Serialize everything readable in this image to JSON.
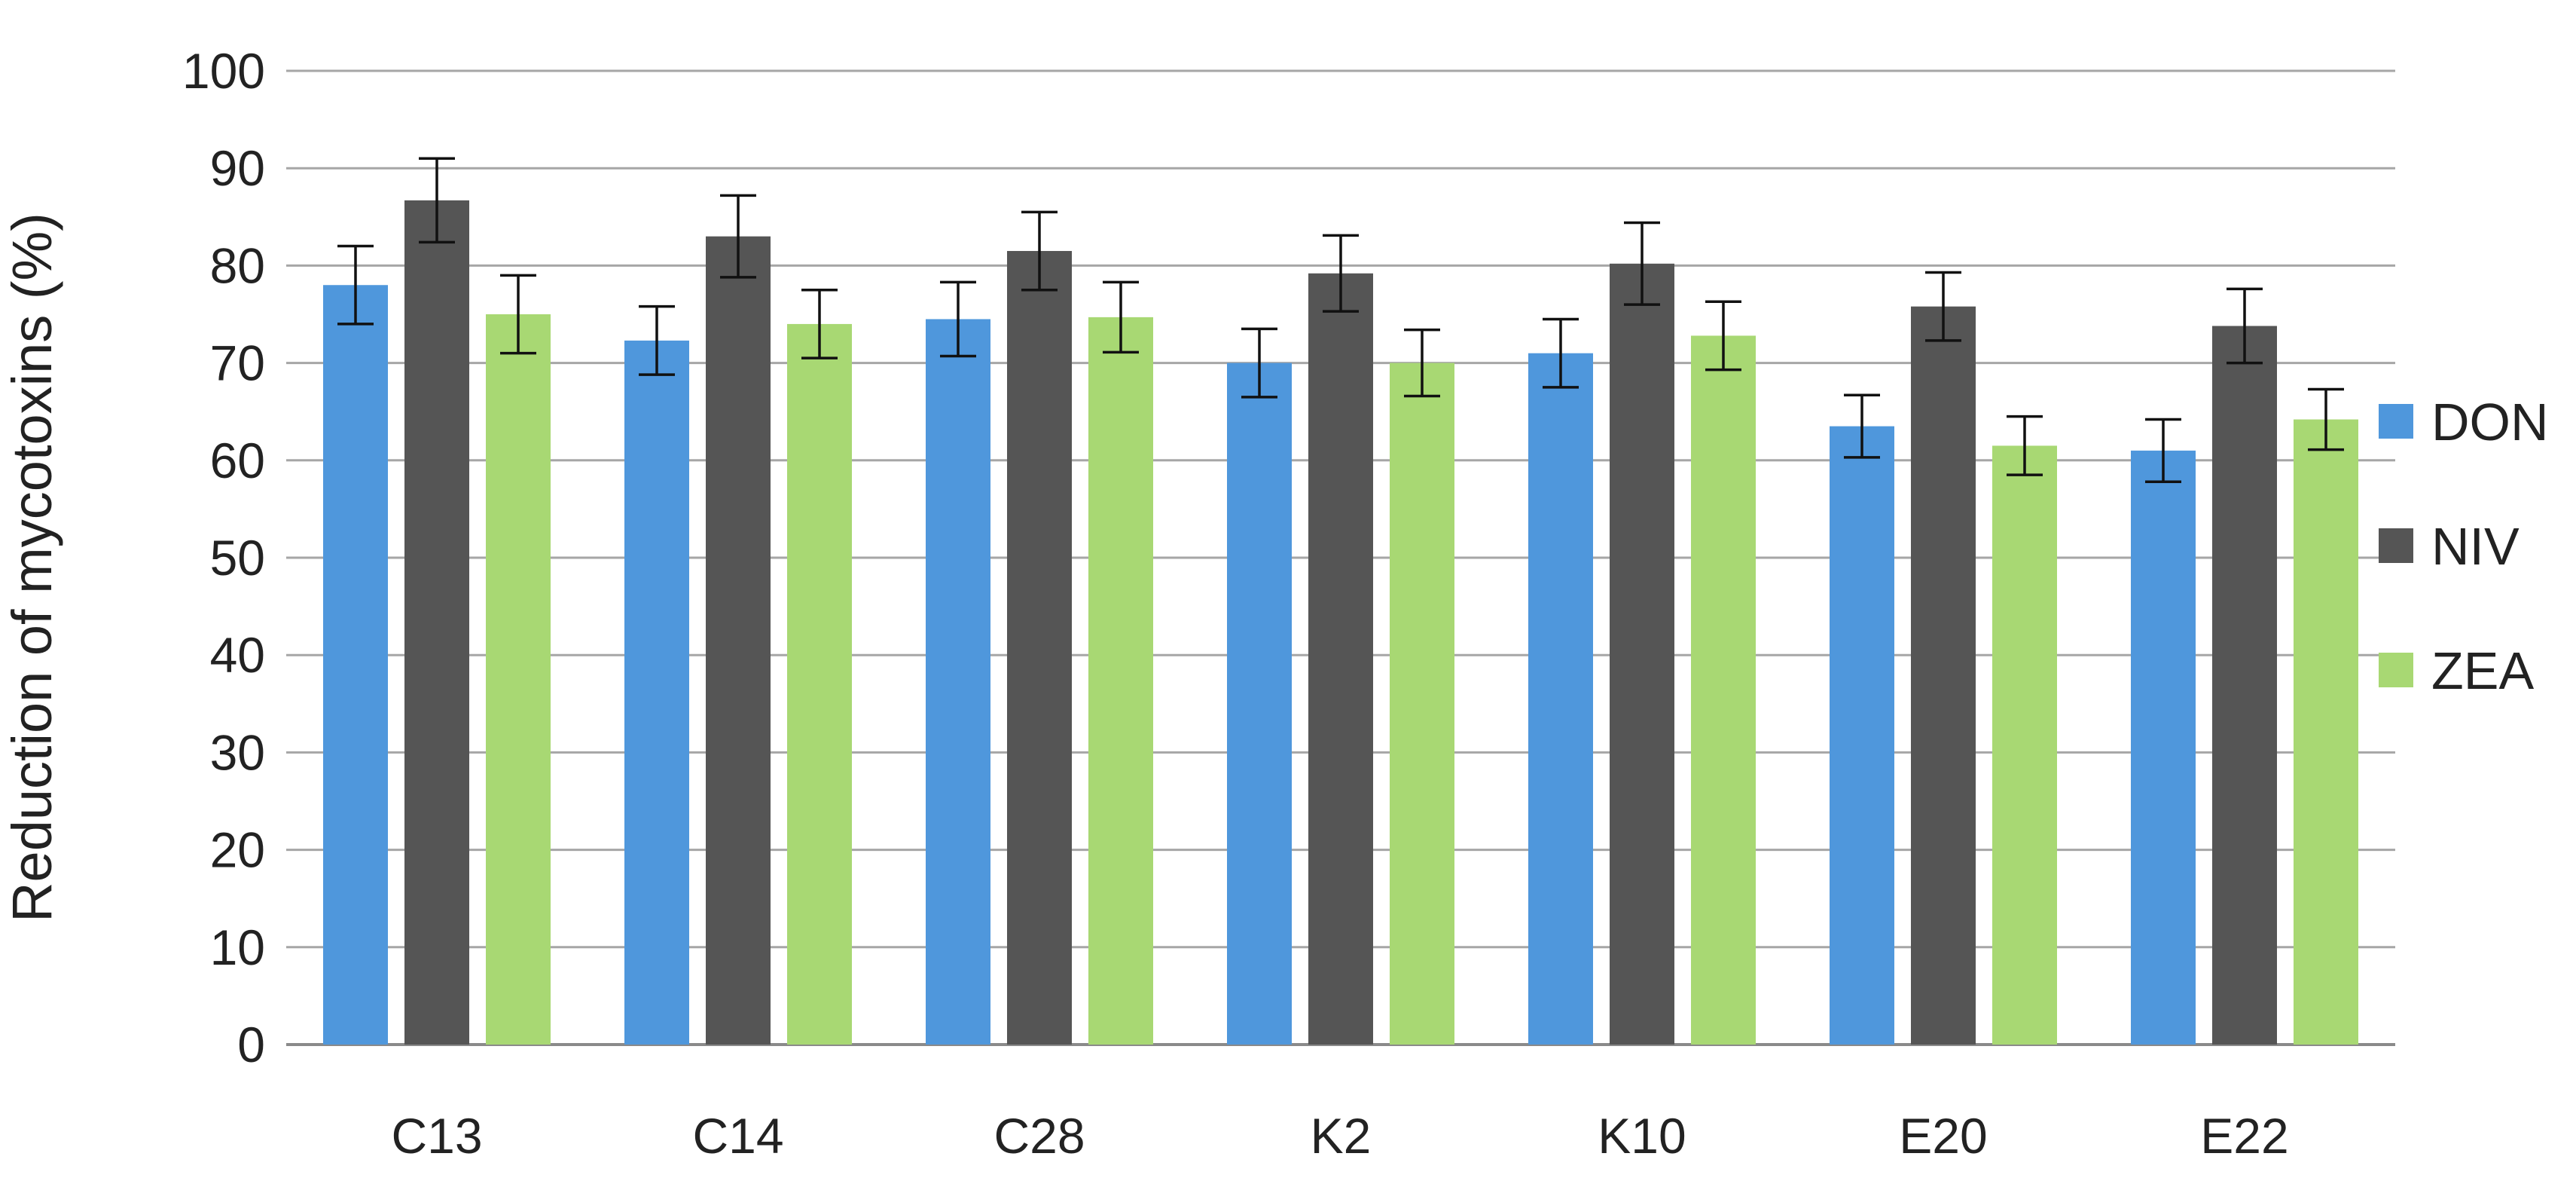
{
  "chart_data": {
    "type": "bar",
    "title": "",
    "xlabel": "",
    "ylabel": "Reduction of mycotoxins (%)",
    "ylim": [
      0,
      100
    ],
    "yticks": [
      0,
      10,
      20,
      30,
      40,
      50,
      60,
      70,
      80,
      90,
      100
    ],
    "grid": true,
    "legend_position": "right",
    "categories": [
      "C13",
      "C14",
      "C28",
      "K2",
      "K10",
      "E20",
      "E22"
    ],
    "series": [
      {
        "name": "DON",
        "color": "#4F97DC",
        "values": [
          78,
          72.3,
          74.5,
          70,
          71,
          63.5,
          61
        ],
        "errors": [
          4,
          3.5,
          3.8,
          3.5,
          3.5,
          3.2,
          3.2
        ]
      },
      {
        "name": "NIV",
        "color": "#555555",
        "values": [
          86.7,
          83,
          81.5,
          79.2,
          80.2,
          75.8,
          73.8
        ],
        "errors": [
          4.3,
          4.2,
          4,
          3.9,
          4.2,
          3.5,
          3.8
        ]
      },
      {
        "name": "ZEA",
        "color": "#A8D873",
        "values": [
          75,
          74,
          74.7,
          70,
          72.8,
          61.5,
          64.2
        ],
        "errors": [
          4,
          3.5,
          3.6,
          3.4,
          3.5,
          3,
          3.1
        ]
      }
    ]
  }
}
